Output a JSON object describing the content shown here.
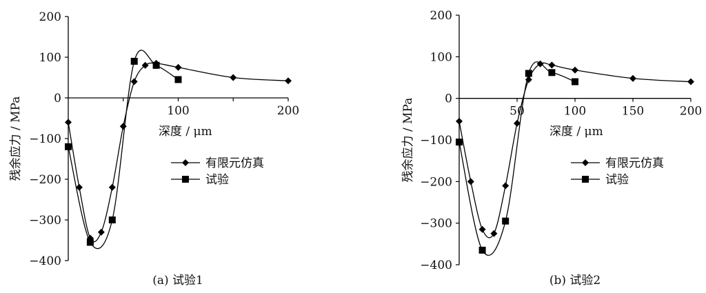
{
  "chart_data": [
    {
      "type": "line",
      "caption": "(a) 试验1",
      "xlabel": "深度 / μm",
      "ylabel": "残余应力 / MPa",
      "xlim": [
        0,
        200
      ],
      "ylim": [
        -400,
        200
      ],
      "x_ticks": [
        "100",
        "200"
      ],
      "y_ticks": [
        "200",
        "100",
        "0",
        "−100",
        "−200",
        "−300",
        "−400"
      ],
      "legend_position": "right-middle",
      "series": [
        {
          "name": "有限元仿真",
          "marker": "diamond",
          "color": "#000000",
          "x": [
            0,
            10,
            20,
            30,
            40,
            50,
            60,
            70,
            80,
            100,
            150,
            200
          ],
          "y": [
            -60,
            -220,
            -345,
            -330,
            -220,
            -70,
            40,
            80,
            85,
            75,
            50,
            42
          ]
        },
        {
          "name": "试验",
          "marker": "square",
          "color": "#000000",
          "x": [
            0,
            20,
            40,
            60,
            80,
            100
          ],
          "y": [
            -120,
            -355,
            -300,
            90,
            80,
            45
          ]
        }
      ]
    },
    {
      "type": "line",
      "caption": "(b) 试验2",
      "xlabel": "深度 / μm",
      "ylabel": "残余应力 / MPa",
      "xlim": [
        0,
        200
      ],
      "ylim": [
        -400,
        200
      ],
      "x_ticks": [
        "50",
        "100",
        "150",
        "200"
      ],
      "y_ticks": [
        "200",
        "100",
        "0",
        "−100",
        "−200",
        "−300",
        "−400"
      ],
      "legend_position": "right-middle",
      "series": [
        {
          "name": "有限元仿真",
          "marker": "diamond",
          "color": "#000000",
          "x": [
            0,
            10,
            20,
            30,
            40,
            50,
            60,
            70,
            80,
            100,
            150,
            200
          ],
          "y": [
            -55,
            -200,
            -315,
            -325,
            -210,
            -60,
            45,
            83,
            80,
            68,
            48,
            40
          ]
        },
        {
          "name": "试验",
          "marker": "square",
          "color": "#000000",
          "x": [
            0,
            20,
            40,
            60,
            80,
            100
          ],
          "y": [
            -105,
            -365,
            -295,
            60,
            62,
            40
          ]
        }
      ]
    }
  ]
}
